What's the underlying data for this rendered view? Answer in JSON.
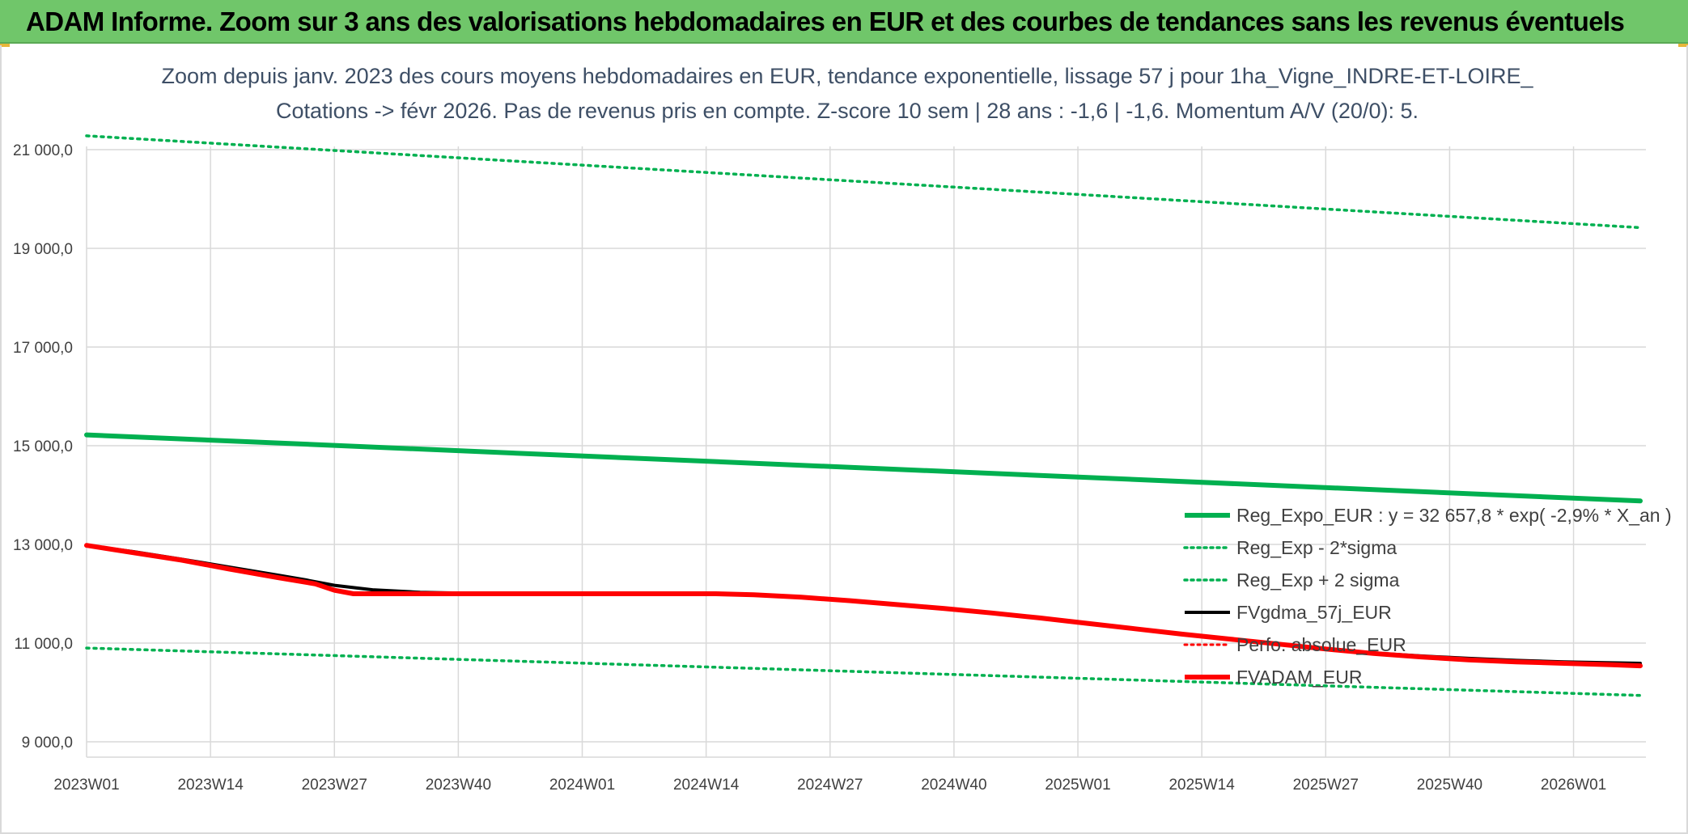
{
  "banner": {
    "title": "ADAM Informe. Zoom sur 3 ans des valorisations hebdomadaires en EUR et des courbes de tendances sans les revenus éventuels",
    "background": "#70c66a"
  },
  "chart_data": {
    "type": "line",
    "title_line1": "Zoom depuis janv. 2023 des cours moyens hebdomadaires en EUR, tendance exponentielle, lissage 57 j pour 1ha_Vigne_INDRE-ET-LOIRE_",
    "title_line2": "Cotations -> févr 2026. Pas de revenus pris en compte. Z-score 10 sem | 28 ans : -1,6 | -1,6. Momentum A/V (20/0): 5.",
    "x_tick_labels": [
      "2023W01",
      "2023W14",
      "2023W27",
      "2023W40",
      "2024W01",
      "2024W14",
      "2024W27",
      "2024W40",
      "2025W01",
      "2025W14",
      "2025W27",
      "2025W40",
      "2026W01"
    ],
    "y_tick_labels": [
      "9 000,0",
      "11 000,0",
      "13 000,0",
      "15 000,0",
      "17 000,0",
      "19 000,0",
      "21 000,0"
    ],
    "y_ticks": [
      9000,
      11000,
      13000,
      15000,
      17000,
      19000,
      21000
    ],
    "ylim": [
      9000,
      21000
    ],
    "x_range_weeks": [
      0,
      163
    ],
    "grid": true,
    "legend_position": "right",
    "series": [
      {
        "name": "Reg_Expo_EUR : y = 32 657,8 * exp( -2,9% *  X_an )",
        "color": "#00b050",
        "style": "solid",
        "width": 6,
        "points": [
          [
            0,
            15220
          ],
          [
            163,
            13880
          ]
        ]
      },
      {
        "name": "Reg_Exp - 2*sigma",
        "color": "#00b050",
        "style": "dotted",
        "width": 3.5,
        "points": [
          [
            0,
            10900
          ],
          [
            163,
            9940
          ]
        ]
      },
      {
        "name": "Reg_Exp + 2 sigma",
        "color": "#00b050",
        "style": "dotted",
        "width": 3.5,
        "points": [
          [
            0,
            21280
          ],
          [
            163,
            19420
          ]
        ]
      },
      {
        "name": "FVgdma_57j_EUR",
        "color": "#000000",
        "style": "solid",
        "width": 4,
        "points": [
          [
            0,
            12980
          ],
          [
            5,
            12850
          ],
          [
            10,
            12700
          ],
          [
            15,
            12540
          ],
          [
            20,
            12380
          ],
          [
            23,
            12280
          ],
          [
            26,
            12170
          ],
          [
            30,
            12080
          ],
          [
            35,
            12030
          ],
          [
            40,
            12010
          ],
          [
            45,
            12000
          ],
          [
            50,
            12000
          ],
          [
            60,
            12000
          ],
          [
            66,
            12000
          ],
          [
            70,
            11990
          ],
          [
            75,
            11940
          ],
          [
            80,
            11870
          ],
          [
            85,
            11790
          ],
          [
            90,
            11700
          ],
          [
            95,
            11610
          ],
          [
            100,
            11510
          ],
          [
            105,
            11400
          ],
          [
            110,
            11290
          ],
          [
            115,
            11180
          ],
          [
            120,
            11080
          ],
          [
            125,
            10980
          ],
          [
            130,
            10880
          ],
          [
            135,
            10800
          ],
          [
            140,
            10740
          ],
          [
            145,
            10690
          ],
          [
            150,
            10650
          ],
          [
            155,
            10620
          ],
          [
            160,
            10600
          ],
          [
            163,
            10590
          ]
        ]
      },
      {
        "name": "Perfo. absolue_EUR",
        "color": "#ff0000",
        "style": "dotted",
        "width": 3,
        "points": [
          [
            0,
            12980
          ],
          [
            5,
            12830
          ],
          [
            10,
            12680
          ],
          [
            15,
            12500
          ],
          [
            20,
            12330
          ],
          [
            24,
            12200
          ],
          [
            26,
            12070
          ],
          [
            28,
            12000
          ],
          [
            40,
            12000
          ],
          [
            66,
            12000
          ],
          [
            70,
            11980
          ],
          [
            75,
            11930
          ],
          [
            80,
            11860
          ],
          [
            85,
            11780
          ],
          [
            90,
            11700
          ],
          [
            95,
            11610
          ],
          [
            100,
            11510
          ],
          [
            105,
            11400
          ],
          [
            110,
            11290
          ],
          [
            115,
            11180
          ],
          [
            120,
            11080
          ],
          [
            125,
            10980
          ],
          [
            130,
            10880
          ],
          [
            135,
            10790
          ],
          [
            140,
            10720
          ],
          [
            145,
            10660
          ],
          [
            150,
            10620
          ],
          [
            155,
            10590
          ],
          [
            160,
            10560
          ],
          [
            163,
            10540
          ]
        ]
      },
      {
        "name": "FVADAM_EUR",
        "color": "#ff0000",
        "style": "solid",
        "width": 6,
        "points": [
          [
            0,
            12980
          ],
          [
            5,
            12830
          ],
          [
            10,
            12680
          ],
          [
            15,
            12500
          ],
          [
            20,
            12330
          ],
          [
            24,
            12200
          ],
          [
            26,
            12070
          ],
          [
            28,
            12000
          ],
          [
            40,
            12000
          ],
          [
            66,
            12000
          ],
          [
            70,
            11980
          ],
          [
            75,
            11930
          ],
          [
            80,
            11860
          ],
          [
            85,
            11780
          ],
          [
            90,
            11700
          ],
          [
            95,
            11610
          ],
          [
            100,
            11510
          ],
          [
            105,
            11400
          ],
          [
            110,
            11290
          ],
          [
            115,
            11180
          ],
          [
            120,
            11080
          ],
          [
            125,
            10980
          ],
          [
            130,
            10880
          ],
          [
            135,
            10790
          ],
          [
            140,
            10720
          ],
          [
            145,
            10660
          ],
          [
            150,
            10620
          ],
          [
            155,
            10590
          ],
          [
            160,
            10560
          ],
          [
            163,
            10540
          ]
        ]
      }
    ]
  }
}
